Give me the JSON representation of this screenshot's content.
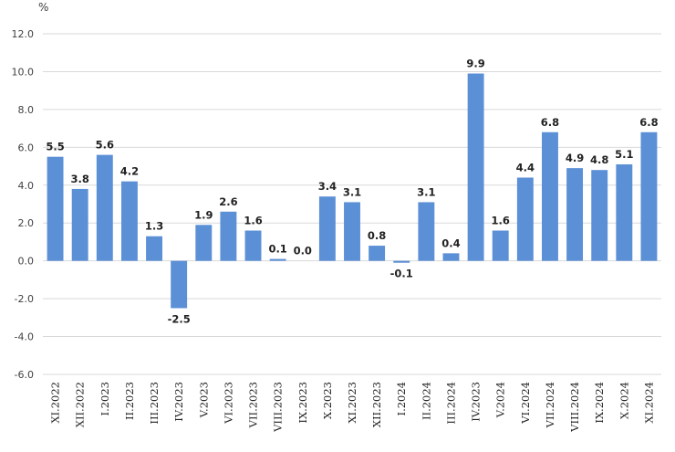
{
  "chart_data": {
    "type": "bar",
    "title": "",
    "xlabel": "",
    "ylabel": "%",
    "ylim": [
      -6.0,
      12.0
    ],
    "yticks": [
      "12.0",
      "10.0",
      "8.0",
      "6.0",
      "4.0",
      "2.0",
      "0.0",
      "-2.0",
      "-4.0",
      "-6.0"
    ],
    "grid": true,
    "legend": "none",
    "bar_color": "#5b8fd6",
    "categories": [
      "XI.2022",
      "XII.2022",
      "I.2023",
      "II.2023",
      "III.2023",
      "IV.2023",
      "V.2023",
      "VI.2023",
      "VII.2023",
      "VIII.2023",
      "IX.2023",
      "X.2023",
      "XI.2023",
      "XII.2023",
      "I.2024",
      "II.2024",
      "III.2024",
      "IV.2023",
      "V.2024",
      "VI.2024",
      "VII.2024",
      "VIII.2024",
      "IX.2024",
      "X.2024",
      "XI.2024"
    ],
    "values": [
      5.5,
      3.8,
      5.6,
      4.2,
      1.3,
      -2.5,
      1.9,
      2.6,
      1.6,
      0.1,
      0.0,
      3.4,
      3.1,
      0.8,
      -0.1,
      3.1,
      0.4,
      9.9,
      1.6,
      4.4,
      6.8,
      4.9,
      4.8,
      5.1,
      6.8
    ],
    "data_labels": [
      "5.5",
      "3.8",
      "5.6",
      "4.2",
      "1.3",
      "-2.5",
      "1.9",
      "2.6",
      "1.6",
      "0.1",
      "0.0",
      "3.4",
      "3.1",
      "0.8",
      "-0.1",
      "3.1",
      "0.4",
      "9.9",
      "1.6",
      "4.4",
      "6.8",
      "4.9",
      "4.8",
      "5.1",
      "6.8"
    ]
  }
}
